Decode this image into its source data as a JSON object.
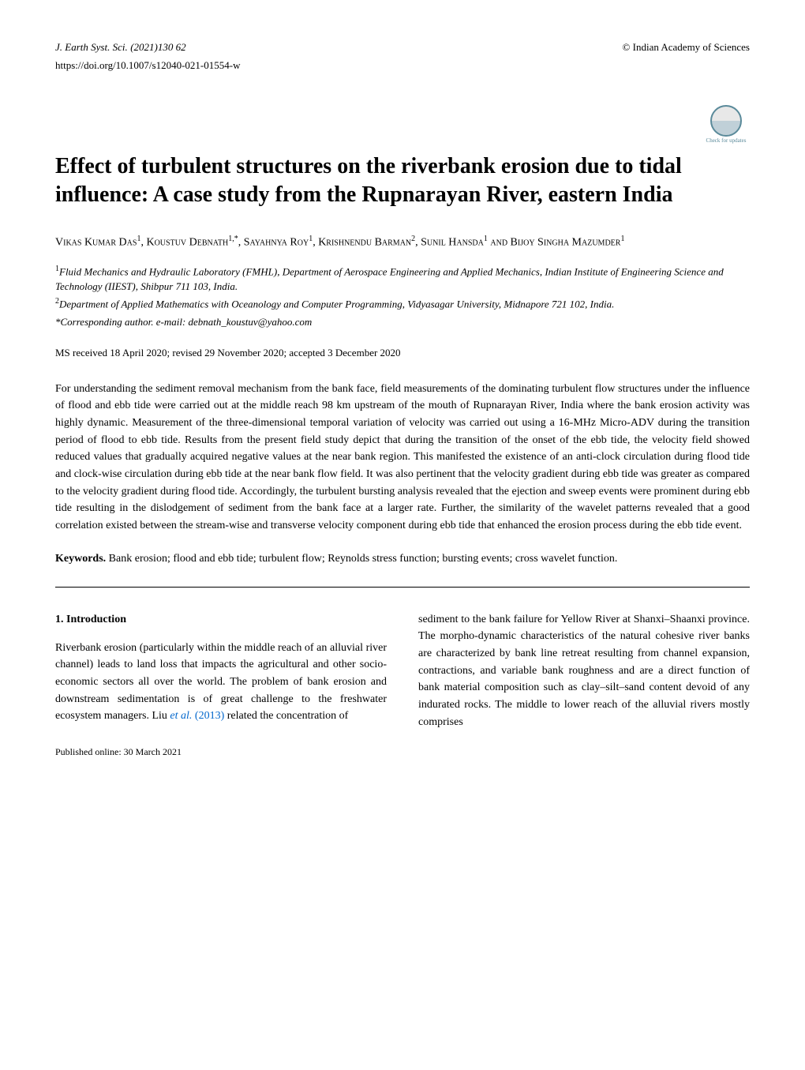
{
  "header": {
    "journal": "J. Earth Syst. Sci.",
    "year_vol_page": "(2021)130 62",
    "publisher": "© Indian Academy of Sciences",
    "doi": "https://doi.org/10.1007/s12040-021-01554-w",
    "check_updates": "Check for updates"
  },
  "title": "Effect of turbulent structures on the riverbank erosion due to tidal influence: A case study from the Rupnarayan River, eastern India",
  "authors": {
    "a1": "Vikas Kumar Das",
    "a1_sup": "1",
    "a2": "Koustuv Debnath",
    "a2_sup": "1,*",
    "a3": "Sayahnya Roy",
    "a3_sup": "1",
    "a4": "Krishnendu Barman",
    "a4_sup": "2",
    "a5": "Sunil Hansda",
    "a5_sup": "1",
    "a6": "Bijoy Singha Mazumder",
    "a6_sup": "1"
  },
  "affiliations": {
    "aff1_sup": "1",
    "aff1": "Fluid Mechanics and Hydraulic Laboratory (FMHL), Department of Aerospace Engineering and Applied Mechanics, Indian Institute of Engineering Science and Technology (IIEST), Shibpur 711 103, India.",
    "aff2_sup": "2",
    "aff2": "Department of Applied Mathematics with Oceanology and Computer Programming, Vidyasagar University, Midnapore 721 102, India."
  },
  "corresponding": "*Corresponding author. e-mail: debnath_koustuv@yahoo.com",
  "dates": "MS received 18 April 2020; revised 29 November 2020; accepted 3 December 2020",
  "abstract": "For understanding the sediment removal mechanism from the bank face, field measurements of the dominating turbulent flow structures under the influence of flood and ebb tide were carried out at the middle reach 98 km upstream of the mouth of Rupnarayan River, India where the bank erosion activity was highly dynamic. Measurement of the three-dimensional temporal variation of velocity was carried out using a 16-MHz Micro-ADV during the transition period of flood to ebb tide. Results from the present field study depict that during the transition of the onset of the ebb tide, the velocity field showed reduced values that gradually acquired negative values at the near bank region. This manifested the existence of an anti-clock circulation during flood tide and clock-wise circulation during ebb tide at the near bank flow field. It was also pertinent that the velocity gradient during ebb tide was greater as compared to the velocity gradient during flood tide. Accordingly, the turbulent bursting analysis revealed that the ejection and sweep events were prominent during ebb tide resulting in the dislodgement of sediment from the bank face at a larger rate. Further, the similarity of the wavelet patterns revealed that a good correlation existed between the stream-wise and transverse velocity component during ebb tide that enhanced the erosion process during the ebb tide event.",
  "keywords_label": "Keywords.",
  "keywords": "Bank erosion; flood and ebb tide; turbulent flow; Reynolds stress function; bursting events; cross wavelet function.",
  "section1": {
    "heading": "1. Introduction",
    "col1_text": "Riverbank erosion (particularly within the middle reach of an alluvial river channel) leads to land loss that impacts the agricultural and other socio-economic sectors all over the world. The problem of bank erosion and downstream sedimentation is of great challenge to the freshwater ecosystem managers. Liu ",
    "col1_citation_text": "et al.",
    "col1_citation_year": "(2013)",
    "col1_text2": " related the concentration of",
    "col2_text": "sediment to the bank failure for Yellow River at Shanxi–Shaanxi province. The morpho-dynamic characteristics of the natural cohesive river banks are characterized by bank line retreat resulting from channel expansion, contractions, and variable bank roughness and are a direct function of bank material composition such as clay–silt–sand content devoid of any indurated rocks. The middle to lower reach of the alluvial rivers mostly comprises"
  },
  "pub_date": "Published online: 30 March 2021"
}
